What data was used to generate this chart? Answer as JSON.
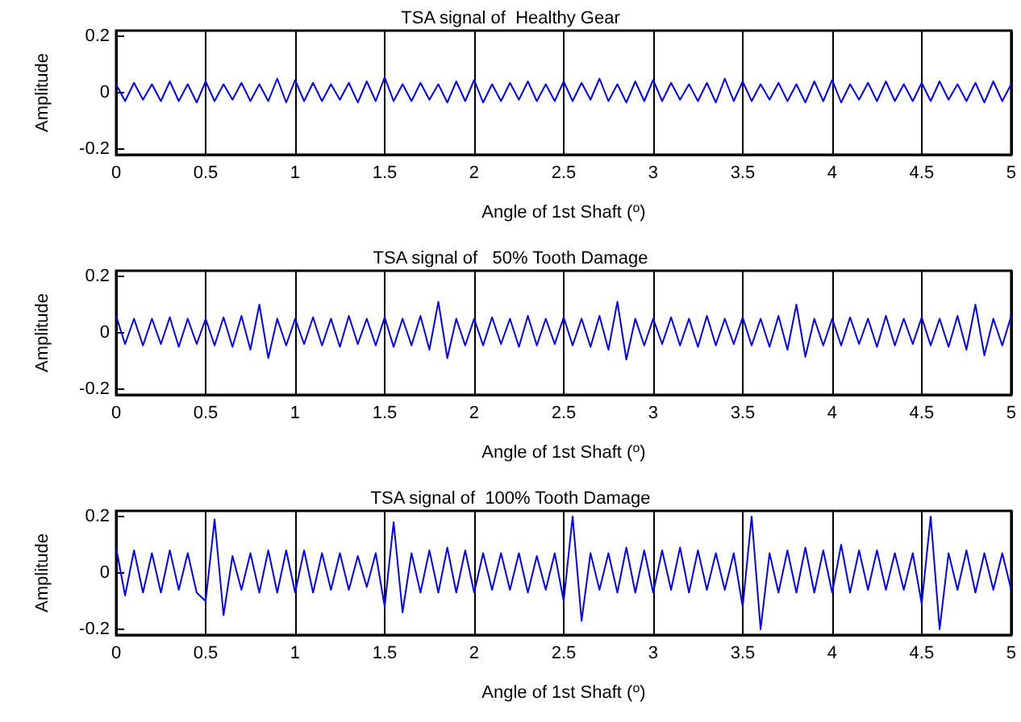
{
  "chart_data": [
    {
      "type": "line",
      "title": "TSA signal of  Healthy Gear",
      "xlabel": "Angle of 1st Shaft ($^{o}$)",
      "ylabel": "Amplitude",
      "xlim": [
        0,
        5
      ],
      "xticks": [
        0,
        0.5,
        1,
        1.5,
        2,
        2.5,
        3,
        3.5,
        4,
        4.5,
        5
      ],
      "ylim": [
        -0.22,
        0.22
      ],
      "yticks": [
        -0.2,
        0,
        0.2
      ],
      "grid": "x",
      "x": [
        0,
        0.05,
        0.1,
        0.15,
        0.2,
        0.25,
        0.3,
        0.35,
        0.4,
        0.45,
        0.5,
        0.55,
        0.6,
        0.65,
        0.7,
        0.75,
        0.8,
        0.85,
        0.9,
        0.95,
        1,
        1.05,
        1.1,
        1.15,
        1.2,
        1.25,
        1.3,
        1.35,
        1.4,
        1.45,
        1.5,
        1.55,
        1.6,
        1.65,
        1.7,
        1.75,
        1.8,
        1.85,
        1.9,
        1.95,
        2,
        2.05,
        2.1,
        2.15,
        2.2,
        2.25,
        2.3,
        2.35,
        2.4,
        2.45,
        2.5,
        2.55,
        2.6,
        2.65,
        2.7,
        2.75,
        2.8,
        2.85,
        2.9,
        2.95,
        3,
        3.05,
        3.1,
        3.15,
        3.2,
        3.25,
        3.3,
        3.35,
        3.4,
        3.45,
        3.5,
        3.55,
        3.6,
        3.65,
        3.7,
        3.75,
        3.8,
        3.85,
        3.9,
        3.95,
        4,
        4.05,
        4.1,
        4.15,
        4.2,
        4.25,
        4.3,
        4.35,
        4.4,
        4.45,
        4.5,
        4.55,
        4.6,
        4.65,
        4.7,
        4.75,
        4.8,
        4.85,
        4.9,
        4.95,
        5
      ],
      "series": [
        {
          "color": "#0000ff",
          "values": [
            0.03,
            -0.03,
            0.035,
            -0.025,
            0.03,
            -0.03,
            0.04,
            -0.03,
            0.03,
            -0.035,
            0.04,
            -0.03,
            0.03,
            -0.025,
            0.035,
            -0.03,
            0.03,
            -0.03,
            0.05,
            -0.035,
            0.045,
            -0.03,
            0.035,
            -0.03,
            0.03,
            -0.025,
            0.035,
            -0.035,
            0.04,
            -0.03,
            0.055,
            -0.03,
            0.03,
            -0.03,
            0.035,
            -0.025,
            0.03,
            -0.035,
            0.04,
            -0.03,
            0.045,
            -0.035,
            0.03,
            -0.03,
            0.035,
            -0.025,
            0.04,
            -0.03,
            0.03,
            -0.03,
            0.04,
            -0.03,
            0.035,
            -0.025,
            0.05,
            -0.03,
            0.03,
            -0.035,
            0.04,
            -0.03,
            0.045,
            -0.03,
            0.035,
            -0.025,
            0.03,
            -0.03,
            0.035,
            -0.035,
            0.05,
            -0.03,
            0.04,
            -0.03,
            0.03,
            -0.025,
            0.035,
            -0.03,
            0.03,
            -0.035,
            0.04,
            -0.03,
            0.045,
            -0.035,
            0.03,
            -0.025,
            0.035,
            -0.03,
            0.04,
            -0.03,
            0.03,
            -0.03,
            0.035,
            -0.03,
            0.04,
            -0.025,
            0.03,
            -0.03,
            0.035,
            -0.035,
            0.04,
            -0.03,
            0.03
          ]
        }
      ]
    },
    {
      "type": "line",
      "title": "TSA signal of   50% Tooth Damage",
      "xlabel": "Angle of 1st Shaft ($^{o}$)",
      "ylabel": "Amplitude",
      "xlim": [
        0,
        5
      ],
      "xticks": [
        0,
        0.5,
        1,
        1.5,
        2,
        2.5,
        3,
        3.5,
        4,
        4.5,
        5
      ],
      "ylim": [
        -0.22,
        0.22
      ],
      "yticks": [
        -0.2,
        0,
        0.2
      ],
      "grid": "x",
      "x": [
        0,
        0.05,
        0.1,
        0.15,
        0.2,
        0.25,
        0.3,
        0.35,
        0.4,
        0.45,
        0.5,
        0.55,
        0.6,
        0.65,
        0.7,
        0.75,
        0.8,
        0.85,
        0.9,
        0.95,
        1,
        1.05,
        1.1,
        1.15,
        1.2,
        1.25,
        1.3,
        1.35,
        1.4,
        1.45,
        1.5,
        1.55,
        1.6,
        1.65,
        1.7,
        1.75,
        1.8,
        1.85,
        1.9,
        1.95,
        2,
        2.05,
        2.1,
        2.15,
        2.2,
        2.25,
        2.3,
        2.35,
        2.4,
        2.45,
        2.5,
        2.55,
        2.6,
        2.65,
        2.7,
        2.75,
        2.8,
        2.85,
        2.9,
        2.95,
        3,
        3.05,
        3.1,
        3.15,
        3.2,
        3.25,
        3.3,
        3.35,
        3.4,
        3.45,
        3.5,
        3.55,
        3.6,
        3.65,
        3.7,
        3.75,
        3.8,
        3.85,
        3.9,
        3.95,
        4,
        4.05,
        4.1,
        4.15,
        4.2,
        4.25,
        4.3,
        4.35,
        4.4,
        4.45,
        4.5,
        4.55,
        4.6,
        4.65,
        4.7,
        4.75,
        4.8,
        4.85,
        4.9,
        4.95,
        5
      ],
      "series": [
        {
          "color": "#0000ff",
          "values": [
            0.06,
            -0.04,
            0.05,
            -0.045,
            0.05,
            -0.04,
            0.055,
            -0.05,
            0.05,
            -0.04,
            0.05,
            -0.045,
            0.055,
            -0.05,
            0.06,
            -0.06,
            0.1,
            -0.09,
            0.05,
            -0.045,
            0.05,
            -0.04,
            0.055,
            -0.045,
            0.05,
            -0.05,
            0.06,
            -0.04,
            0.05,
            -0.045,
            0.055,
            -0.05,
            0.05,
            -0.045,
            0.06,
            -0.06,
            0.11,
            -0.09,
            0.05,
            -0.045,
            0.05,
            -0.045,
            0.055,
            -0.04,
            0.05,
            -0.05,
            0.06,
            -0.045,
            0.05,
            -0.04,
            0.055,
            -0.045,
            0.05,
            -0.05,
            0.06,
            -0.06,
            0.11,
            -0.095,
            0.05,
            -0.045,
            0.05,
            -0.04,
            0.055,
            -0.045,
            0.05,
            -0.05,
            0.06,
            -0.045,
            0.05,
            -0.04,
            0.055,
            -0.045,
            0.05,
            -0.05,
            0.06,
            -0.06,
            0.1,
            -0.085,
            0.05,
            -0.045,
            0.05,
            -0.045,
            0.055,
            -0.04,
            0.05,
            -0.05,
            0.06,
            -0.045,
            0.05,
            -0.04,
            0.055,
            -0.045,
            0.05,
            -0.05,
            0.06,
            -0.06,
            0.1,
            -0.08,
            0.05,
            -0.045,
            0.06
          ]
        }
      ]
    },
    {
      "type": "line",
      "title": "TSA signal of  100% Tooth Damage",
      "xlabel": "Angle of 1st Shaft ($^{o}$)",
      "ylabel": "Amplitude",
      "xlim": [
        0,
        5
      ],
      "xticks": [
        0,
        0.5,
        1,
        1.5,
        2,
        2.5,
        3,
        3.5,
        4,
        4.5,
        5
      ],
      "ylim": [
        -0.22,
        0.22
      ],
      "yticks": [
        -0.2,
        0,
        0.2
      ],
      "grid": "x",
      "x": [
        0,
        0.05,
        0.1,
        0.15,
        0.2,
        0.25,
        0.3,
        0.35,
        0.4,
        0.45,
        0.5,
        0.55,
        0.6,
        0.65,
        0.7,
        0.75,
        0.8,
        0.85,
        0.9,
        0.95,
        1,
        1.05,
        1.1,
        1.15,
        1.2,
        1.25,
        1.3,
        1.35,
        1.4,
        1.45,
        1.5,
        1.55,
        1.6,
        1.65,
        1.7,
        1.75,
        1.8,
        1.85,
        1.9,
        1.95,
        2,
        2.05,
        2.1,
        2.15,
        2.2,
        2.25,
        2.3,
        2.35,
        2.4,
        2.45,
        2.5,
        2.55,
        2.6,
        2.65,
        2.7,
        2.75,
        2.8,
        2.85,
        2.9,
        2.95,
        3,
        3.05,
        3.1,
        3.15,
        3.2,
        3.25,
        3.3,
        3.35,
        3.4,
        3.45,
        3.5,
        3.55,
        3.6,
        3.65,
        3.7,
        3.75,
        3.8,
        3.85,
        3.9,
        3.95,
        4,
        4.05,
        4.1,
        4.15,
        4.2,
        4.25,
        4.3,
        4.35,
        4.4,
        4.45,
        4.5,
        4.55,
        4.6,
        4.65,
        4.7,
        4.75,
        4.8,
        4.85,
        4.9,
        4.95,
        5
      ],
      "series": [
        {
          "color": "#0000ff",
          "values": [
            0.09,
            -0.08,
            0.08,
            -0.07,
            0.07,
            -0.07,
            0.08,
            -0.06,
            0.07,
            -0.07,
            -0.1,
            0.19,
            -0.15,
            0.06,
            -0.06,
            0.07,
            -0.07,
            0.08,
            -0.07,
            0.08,
            -0.07,
            0.08,
            -0.07,
            0.07,
            -0.06,
            0.07,
            -0.06,
            0.06,
            -0.05,
            0.07,
            -0.12,
            0.18,
            -0.14,
            0.07,
            -0.07,
            0.08,
            -0.07,
            0.09,
            -0.07,
            0.08,
            -0.07,
            0.07,
            -0.06,
            0.07,
            -0.06,
            0.07,
            -0.07,
            0.06,
            -0.06,
            0.07,
            -0.1,
            0.2,
            -0.17,
            0.07,
            -0.06,
            0.07,
            -0.07,
            0.09,
            -0.07,
            0.08,
            -0.07,
            0.08,
            -0.06,
            0.09,
            -0.07,
            0.08,
            -0.06,
            0.07,
            -0.06,
            0.07,
            -0.12,
            0.2,
            -0.2,
            0.07,
            -0.07,
            0.08,
            -0.07,
            0.09,
            -0.07,
            0.08,
            -0.07,
            0.1,
            -0.07,
            0.08,
            -0.06,
            0.08,
            -0.06,
            0.07,
            -0.06,
            0.07,
            -0.11,
            0.2,
            -0.2,
            0.07,
            -0.06,
            0.08,
            -0.07,
            0.07,
            -0.06,
            0.07,
            -0.06
          ]
        }
      ]
    }
  ]
}
